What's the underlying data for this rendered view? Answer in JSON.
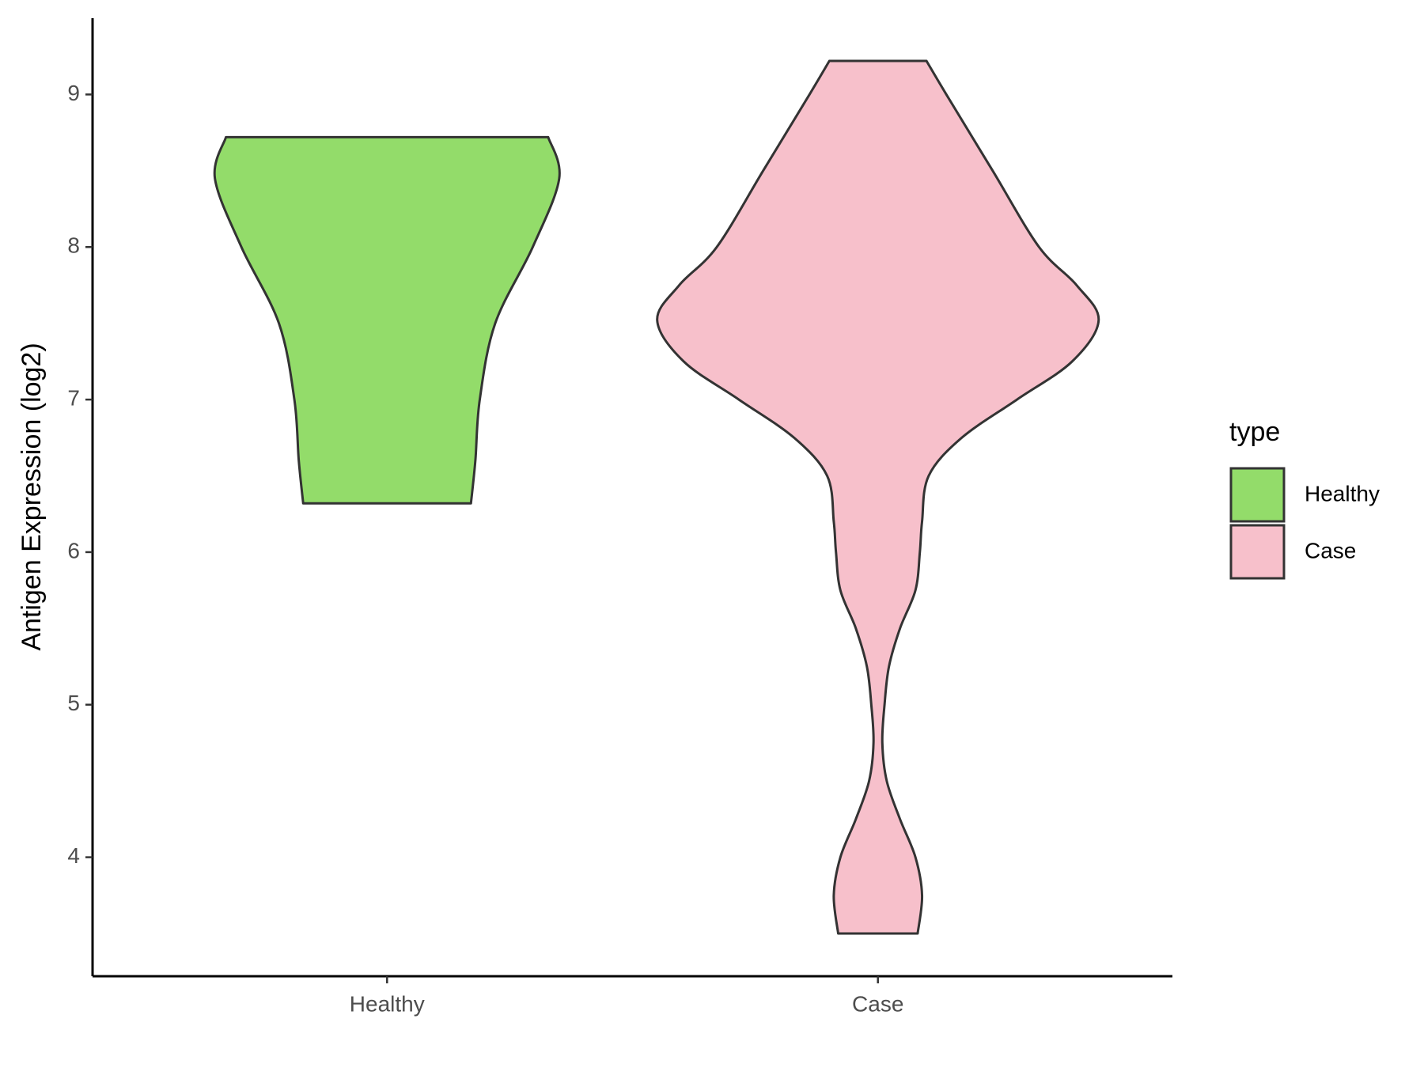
{
  "chart_data": {
    "type": "violin",
    "y_label": "Antigen Expression (log2)",
    "categories": [
      "Healthy",
      "Case"
    ],
    "ylim": [
      3.22,
      9.5
    ],
    "yticks": [
      4,
      5,
      6,
      7,
      8,
      9
    ],
    "legend_title": "type",
    "legend_position": "right",
    "series": [
      {
        "name": "Healthy",
        "color": "#93dc6a",
        "y": [
          6.32,
          6.6,
          7.0,
          7.5,
          8.0,
          8.45,
          8.72
        ],
        "density": [
          0.38,
          0.4,
          0.42,
          0.49,
          0.66,
          0.78,
          0.73
        ]
      },
      {
        "name": "Case",
        "color": "#f7c0cb",
        "y": [
          3.5,
          3.75,
          4.0,
          4.25,
          4.5,
          4.75,
          5.0,
          5.25,
          5.5,
          5.75,
          6.0,
          6.2,
          6.5,
          6.75,
          7.0,
          7.25,
          7.52,
          7.75,
          8.0,
          8.5,
          9.0,
          9.22
        ],
        "density": [
          0.18,
          0.2,
          0.17,
          0.1,
          0.04,
          0.02,
          0.03,
          0.05,
          0.1,
          0.17,
          0.19,
          0.2,
          0.23,
          0.38,
          0.63,
          0.88,
          1.0,
          0.9,
          0.73,
          0.52,
          0.31,
          0.22
        ]
      }
    ]
  }
}
